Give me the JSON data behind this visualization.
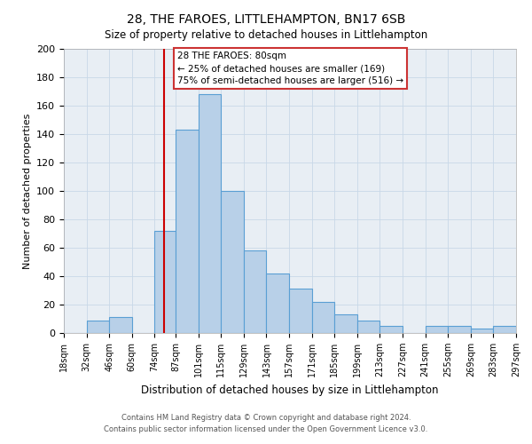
{
  "title": "28, THE FAROES, LITTLEHAMPTON, BN17 6SB",
  "subtitle": "Size of property relative to detached houses in Littlehampton",
  "xlabel": "Distribution of detached houses by size in Littlehampton",
  "ylabel": "Number of detached properties",
  "footnote1": "Contains HM Land Registry data © Crown copyright and database right 2024.",
  "footnote2": "Contains public sector information licensed under the Open Government Licence v3.0.",
  "bar_left_edges": [
    18,
    32,
    46,
    60,
    74,
    87,
    101,
    115,
    129,
    143,
    157,
    171,
    185,
    199,
    213,
    227,
    241,
    255,
    269,
    283
  ],
  "bar_widths": [
    14,
    14,
    14,
    14,
    13,
    14,
    14,
    14,
    14,
    14,
    14,
    14,
    14,
    14,
    14,
    14,
    14,
    14,
    14,
    14
  ],
  "bar_heights": [
    0,
    9,
    11,
    0,
    72,
    143,
    168,
    100,
    58,
    42,
    31,
    22,
    13,
    9,
    5,
    0,
    5,
    5,
    3,
    5
  ],
  "bar_color": "#b8d0e8",
  "bar_edge_color": "#5a9fd4",
  "tick_labels": [
    "18sqm",
    "32sqm",
    "46sqm",
    "60sqm",
    "74sqm",
    "87sqm",
    "101sqm",
    "115sqm",
    "129sqm",
    "143sqm",
    "157sqm",
    "171sqm",
    "185sqm",
    "199sqm",
    "213sqm",
    "227sqm",
    "241sqm",
    "255sqm",
    "269sqm",
    "283sqm",
    "297sqm"
  ],
  "ylim": [
    0,
    200
  ],
  "yticks": [
    0,
    20,
    40,
    60,
    80,
    100,
    120,
    140,
    160,
    180,
    200
  ],
  "xlim": [
    18,
    297
  ],
  "vline_x": 80,
  "vline_color": "#cc0000",
  "annotation_title": "28 THE FAROES: 80sqm",
  "annotation_line1": "← 25% of detached houses are smaller (169)",
  "annotation_line2": "75% of semi-detached houses are larger (516) →",
  "bg_color": "#e8eef4",
  "grid_color": "#c8d8e8",
  "title_fontsize": 10,
  "subtitle_fontsize": 9
}
